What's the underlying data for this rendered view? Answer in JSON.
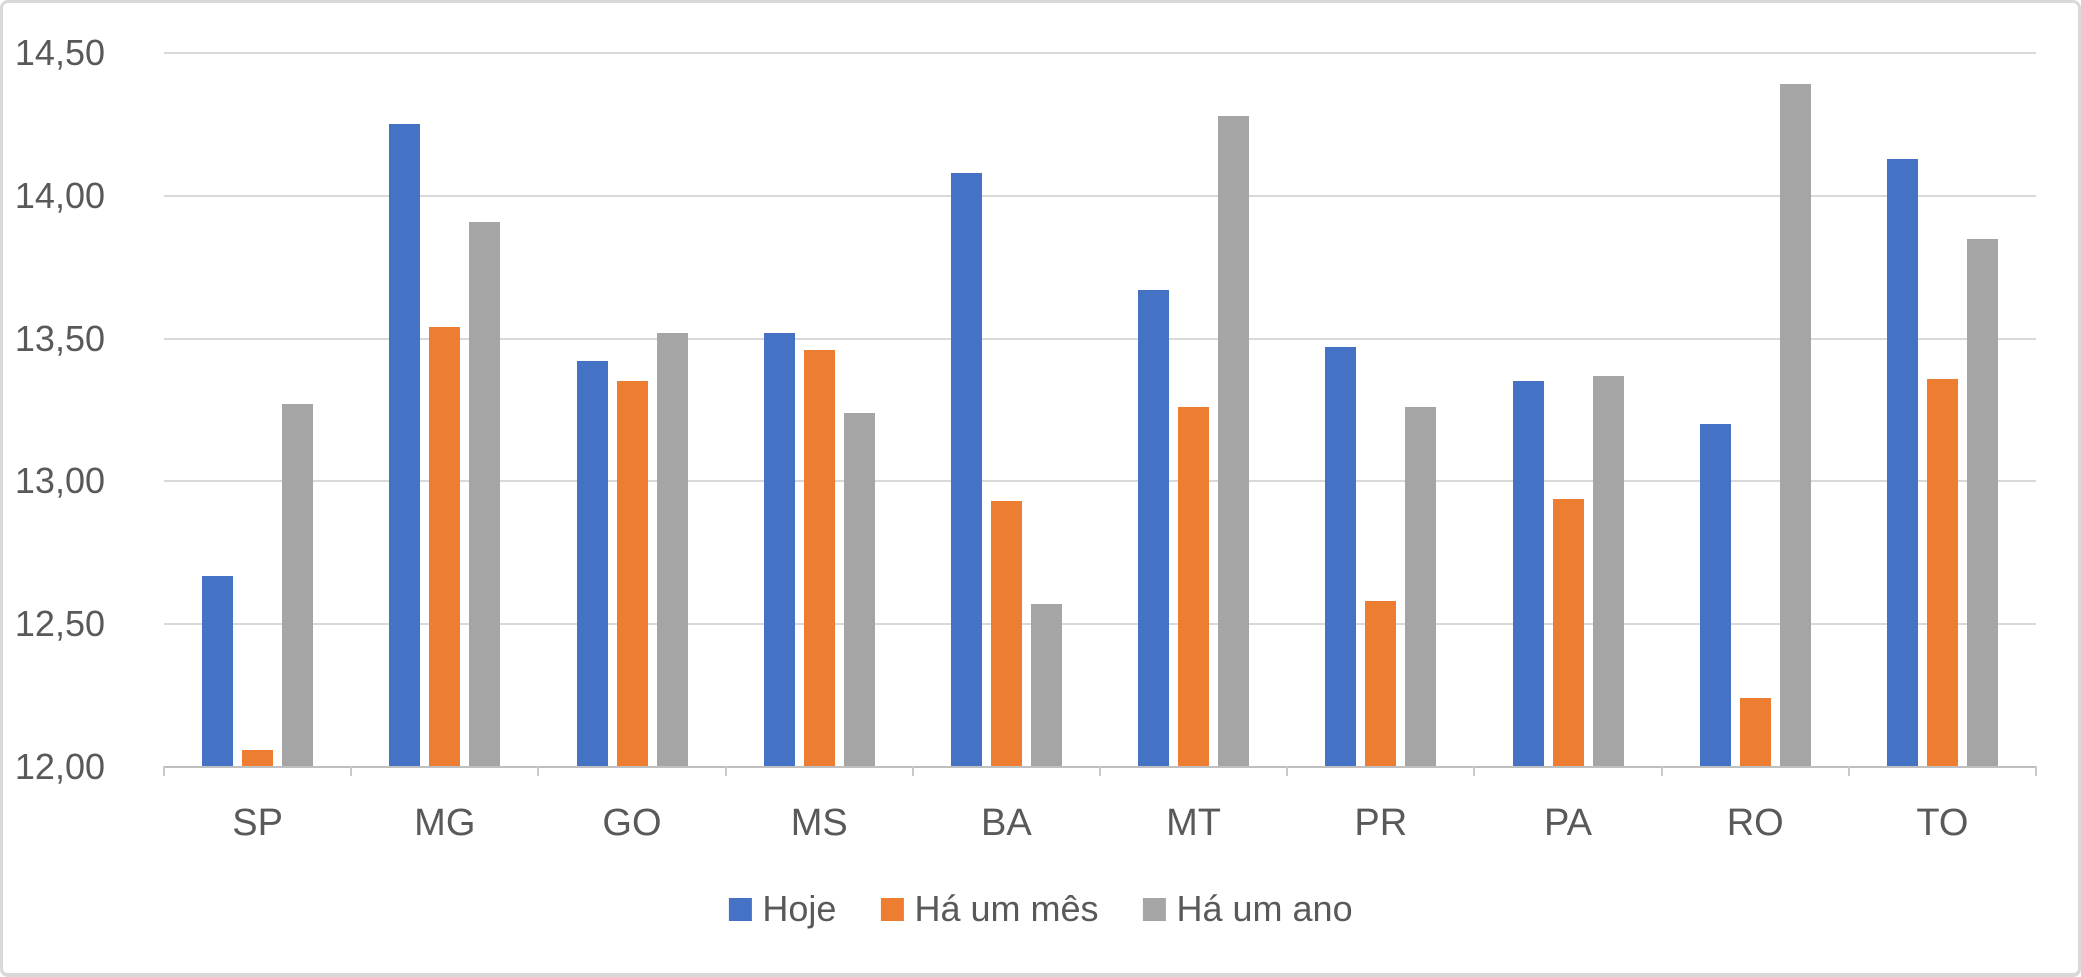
{
  "chart_data": {
    "type": "bar",
    "title": "",
    "categories": [
      "SP",
      "MG",
      "GO",
      "MS",
      "BA",
      "MT",
      "PR",
      "PA",
      "RO",
      "TO"
    ],
    "series": [
      {
        "name": "Hoje",
        "color": "#4472C4",
        "values": [
          12.67,
          14.25,
          13.42,
          13.52,
          14.08,
          13.67,
          13.47,
          13.35,
          13.2,
          14.13
        ]
      },
      {
        "name": "Há um mês",
        "color": "#ED7D31",
        "values": [
          12.06,
          13.54,
          13.35,
          13.46,
          12.93,
          13.26,
          12.58,
          12.94,
          12.24,
          13.36
        ]
      },
      {
        "name": "Há um ano",
        "color": "#A5A5A5",
        "values": [
          13.27,
          13.91,
          13.52,
          13.24,
          12.57,
          14.28,
          13.26,
          13.37,
          14.39,
          13.85
        ]
      }
    ],
    "ylim": [
      12.0,
      14.5
    ],
    "ytick_step": 0.5,
    "ytick_labels": [
      "12,00",
      "12,50",
      "13,00",
      "13,50",
      "14,00",
      "14,50"
    ],
    "grid": true,
    "legend_position": "bottom",
    "colors": {
      "grid": "#D9D9D9",
      "axis_line": "#BFBFBF",
      "tick": "#C9C9C9",
      "text": "#595959",
      "frame_border": "#D9D9D9",
      "background": "#FFFFFF"
    }
  }
}
